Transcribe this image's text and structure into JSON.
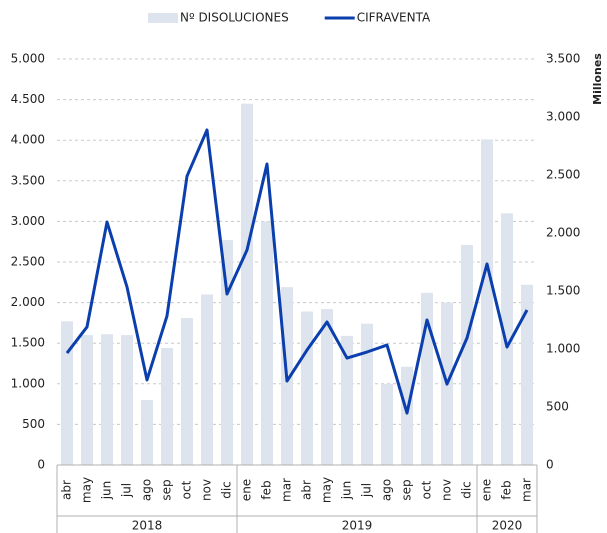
{
  "chart_data": {
    "type": "bar_line",
    "groups": [
      {
        "label": "2018",
        "categories": [
          "abr",
          "may",
          "jun",
          "jul",
          "ago",
          "sep",
          "oct",
          "nov",
          "dic"
        ]
      },
      {
        "label": "2019",
        "categories": [
          "ene",
          "feb",
          "mar",
          "abr",
          "may",
          "jun",
          "jul",
          "ago",
          "sep",
          "oct",
          "nov",
          "dic"
        ]
      },
      {
        "label": "2020",
        "categories": [
          "ene",
          "feb",
          "mar"
        ]
      }
    ],
    "series": [
      {
        "name": "Nº DISOLUCIONES",
        "type": "bar",
        "color": "#dde4ee",
        "values": [
          1770,
          1600,
          1610,
          1600,
          800,
          1440,
          1810,
          2100,
          2770,
          4450,
          3000,
          2190,
          1890,
          1920,
          1590,
          1740,
          1000,
          1210,
          2120,
          2000,
          2710,
          4010,
          3100,
          2220
        ]
      },
      {
        "name": "CIFRAVENTA",
        "type": "line",
        "axis": "y2",
        "color": "#0b3fae",
        "values": [
          965,
          1190,
          2095,
          1535,
          733,
          1285,
          2490,
          2888,
          1474,
          1853,
          2595,
          724,
          991,
          1233,
          922,
          974,
          1034,
          448,
          1250,
          698,
          1095,
          1733,
          1017,
          1336
        ]
      }
    ],
    "ylim": [
      0,
      5000
    ],
    "yticks": [
      0,
      500,
      {
        "value": 1000,
        "label": "1.000"
      },
      {
        "value": 1500,
        "label": "1.500"
      },
      {
        "value": 2000,
        "label": "2.000"
      },
      {
        "value": 2500,
        "label": "2.500"
      },
      {
        "value": 3000,
        "label": "3.000"
      },
      {
        "value": 3500,
        "label": "3.500"
      },
      {
        "value": 4000,
        "label": "4.000"
      },
      {
        "value": 4500,
        "label": "4.500"
      },
      {
        "value": 5000,
        "label": "5.000"
      }
    ],
    "y2lim": [
      0,
      3500
    ],
    "y2ticks": [
      0,
      500,
      {
        "value": 1000,
        "label": "1.000"
      },
      {
        "value": 1500,
        "label": "1.500"
      },
      {
        "value": 2000,
        "label": "2.000"
      },
      {
        "value": 2500,
        "label": "2.500"
      },
      {
        "value": 3000,
        "label": "3.000"
      },
      {
        "value": 3500,
        "label": "3.500"
      }
    ],
    "y2label": "Millones",
    "grid": true
  }
}
